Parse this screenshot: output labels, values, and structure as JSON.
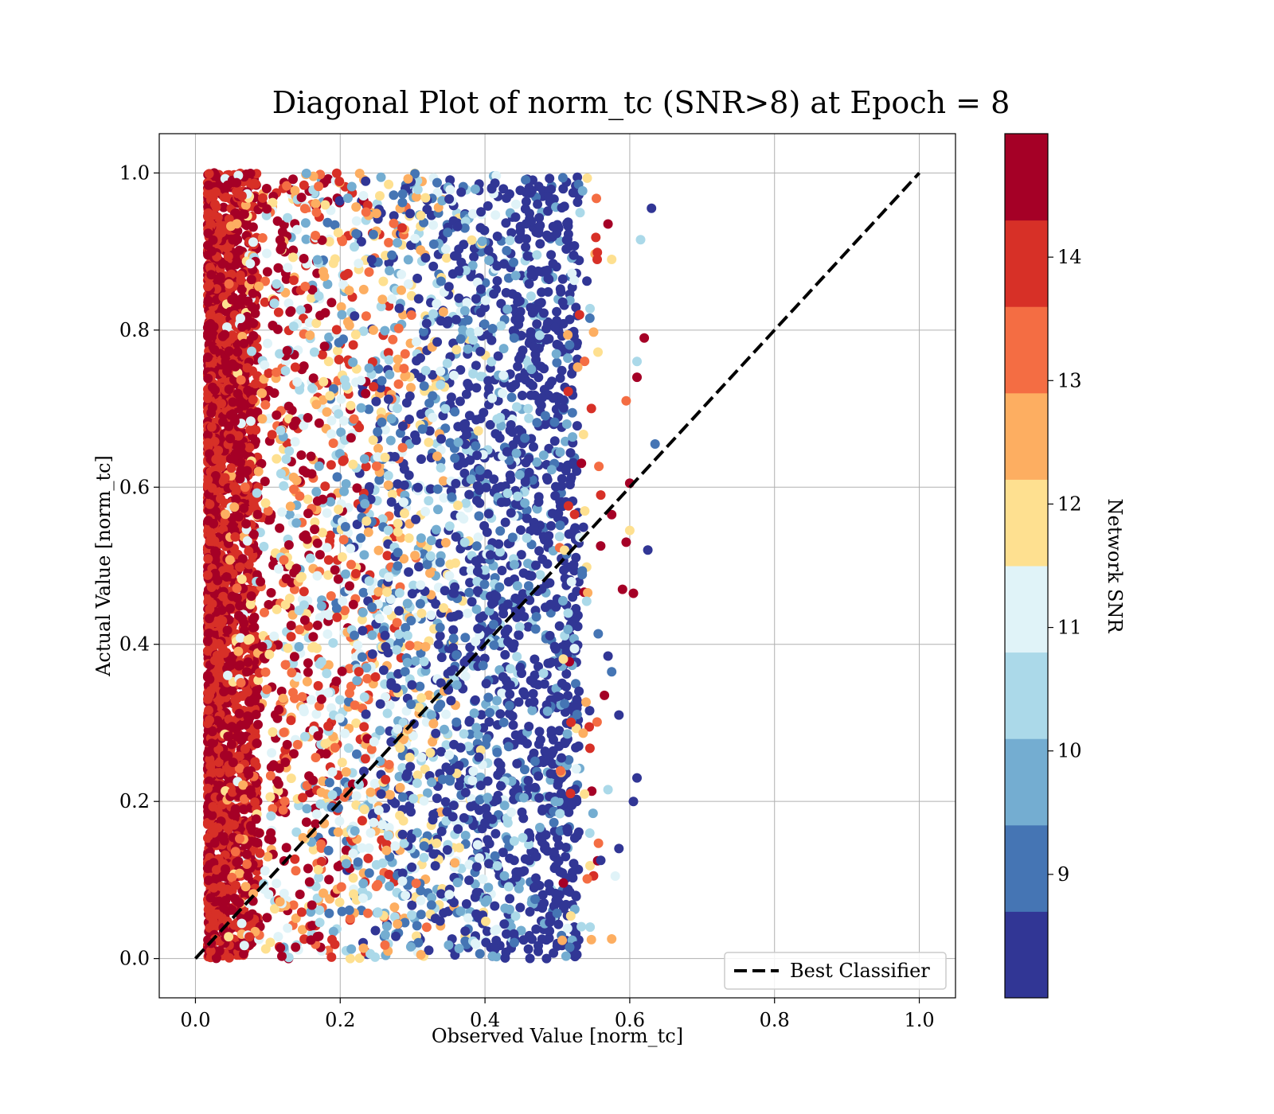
{
  "chart_data": {
    "type": "scatter",
    "title": "Diagonal Plot of norm_tc (SNR>8) at Epoch = 8",
    "xlabel": "Observed Value [norm_tc]",
    "ylabel": "Actual Value [norm_tc]",
    "xlim": [
      -0.05,
      1.05
    ],
    "ylim": [
      -0.05,
      1.05
    ],
    "x_ticks": [
      "0.0",
      "0.2",
      "0.4",
      "0.6",
      "0.8",
      "1.0"
    ],
    "y_ticks": [
      "0.0",
      "0.2",
      "0.4",
      "0.6",
      "0.8",
      "1.0"
    ],
    "grid": true,
    "legend": {
      "position": "lower-right",
      "entries": [
        "Best Classifier"
      ]
    },
    "reference_line": {
      "name": "Best Classifier",
      "style": "dashed",
      "color": "#000000",
      "points": [
        [
          0,
          0
        ],
        [
          1,
          1
        ]
      ]
    },
    "colorbar": {
      "label": "Network SNR",
      "range": [
        8.0,
        15.0
      ],
      "tick_labels": [
        "9",
        "10",
        "11",
        "12",
        "13",
        "14"
      ],
      "tick_values": [
        9,
        10,
        11,
        12,
        13,
        14
      ],
      "colors": [
        "#313695",
        "#4575b4",
        "#74add1",
        "#abd9e9",
        "#e0f3f8",
        "#ffffbf",
        "#fee090",
        "#fdae61",
        "#f46d43",
        "#d73027",
        "#a50026"
      ]
    },
    "series": [
      {
        "name": "",
        "x_range": [
          0.015,
          0.63
        ],
        "y_range": [
          0.0,
          1.0
        ],
        "outliers": [
          {
            "x": 0.63,
            "y": 0.955,
            "snr": 8.2
          },
          {
            "x": 0.615,
            "y": 0.915,
            "snr": 10.5
          },
          {
            "x": 0.575,
            "y": 0.89,
            "snr": 12.2
          },
          {
            "x": 0.555,
            "y": 0.89,
            "snr": 13.8
          },
          {
            "x": 0.57,
            "y": 0.935,
            "snr": 14.9
          },
          {
            "x": 0.62,
            "y": 0.79,
            "snr": 14.9
          },
          {
            "x": 0.61,
            "y": 0.76,
            "snr": 10.6
          },
          {
            "x": 0.61,
            "y": 0.74,
            "snr": 14.9
          },
          {
            "x": 0.595,
            "y": 0.71,
            "snr": 13.2
          },
          {
            "x": 0.635,
            "y": 0.655,
            "snr": 9.3
          },
          {
            "x": 0.6,
            "y": 0.605,
            "snr": 14.9
          },
          {
            "x": 0.56,
            "y": 0.59,
            "snr": 14.0
          },
          {
            "x": 0.575,
            "y": 0.565,
            "snr": 14.9
          },
          {
            "x": 0.6,
            "y": 0.545,
            "snr": 12.0
          },
          {
            "x": 0.595,
            "y": 0.53,
            "snr": 14.9
          },
          {
            "x": 0.625,
            "y": 0.52,
            "snr": 8.3
          },
          {
            "x": 0.59,
            "y": 0.47,
            "snr": 14.9
          },
          {
            "x": 0.605,
            "y": 0.465,
            "snr": 14.9
          },
          {
            "x": 0.57,
            "y": 0.385,
            "snr": 8.6
          },
          {
            "x": 0.575,
            "y": 0.365,
            "snr": 9.2
          },
          {
            "x": 0.565,
            "y": 0.335,
            "snr": 14.9
          },
          {
            "x": 0.585,
            "y": 0.31,
            "snr": 8.2
          },
          {
            "x": 0.61,
            "y": 0.23,
            "snr": 8.4
          },
          {
            "x": 0.57,
            "y": 0.215,
            "snr": 10.5
          },
          {
            "x": 0.605,
            "y": 0.2,
            "snr": 8.6
          },
          {
            "x": 0.585,
            "y": 0.14,
            "snr": 8.5
          },
          {
            "x": 0.58,
            "y": 0.105,
            "snr": 11.4
          },
          {
            "x": 0.56,
            "y": 0.125,
            "snr": 8.7
          },
          {
            "x": 0.575,
            "y": 0.025,
            "snr": 12.7
          }
        ]
      }
    ]
  }
}
